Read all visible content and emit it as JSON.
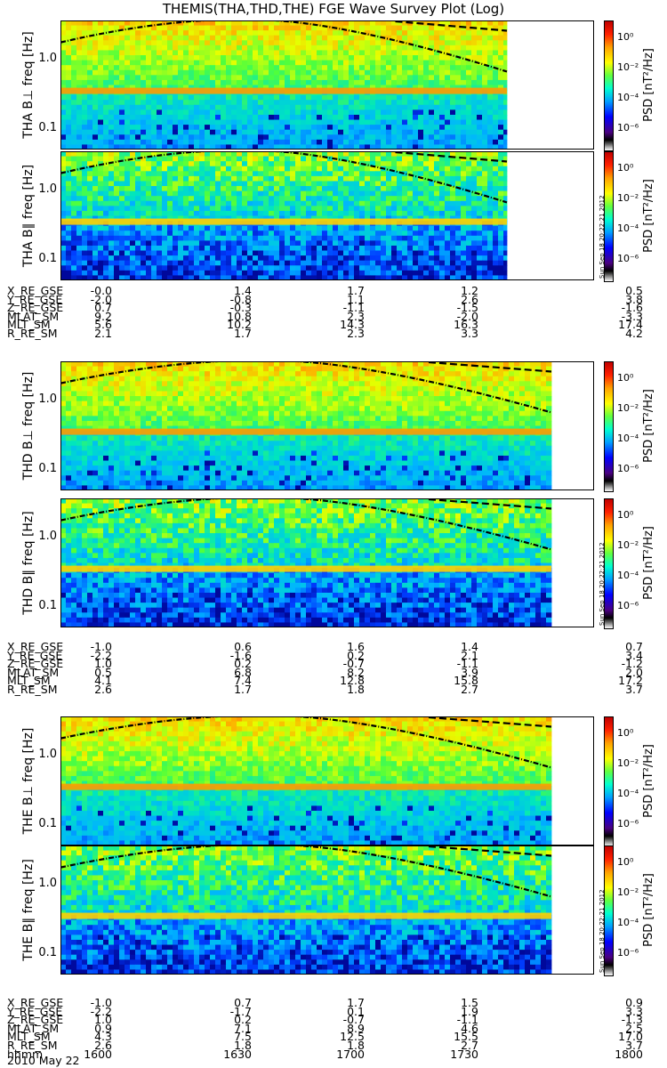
{
  "title": "THEMIS(THA,THD,THE) FGE Wave Survey Plot (Log)",
  "common": {
    "ylabel_unit": "freq [Hz]",
    "ytick_labels": [
      "1.0",
      "0.1"
    ],
    "cbar_label": "PSD [nT²/Hz]",
    "cbar_ticks": [
      "10⁰",
      "10⁻²",
      "10⁻⁴",
      "10⁻⁶"
    ],
    "stamp": "Sun Sep 18 20:22:21 2012"
  },
  "probes": [
    {
      "panels": [
        {
          "label": "THA B⊥"
        },
        {
          "label": "THA B∥"
        }
      ],
      "table": [
        {
          "name": "X_RE_GSE",
          "values": [
            "-0.0",
            "1.4",
            "1.7",
            "1.2",
            "0.5"
          ]
        },
        {
          "name": "Y_RE_GSE",
          "values": [
            "-2.0",
            "-0.8",
            "1.1",
            "2.6",
            "3.8"
          ]
        },
        {
          "name": "Z_RE_GSE",
          "values": [
            "0.7",
            "-0.3",
            "-1.1",
            "-1.5",
            "-1.6"
          ]
        },
        {
          "name": "MLAT_SM",
          "values": [
            "9.2",
            "10.8",
            "2.3",
            "-2.0",
            "-3.3"
          ]
        },
        {
          "name": "MLT_SM",
          "values": [
            "5.6",
            "10.2",
            "14.3",
            "16.3",
            "17.4"
          ]
        },
        {
          "name": "R_RE_SM",
          "values": [
            "2.1",
            "1.7",
            "2.3",
            "3.3",
            "4.2"
          ]
        }
      ]
    },
    {
      "panels": [
        {
          "label": "THD B⊥"
        },
        {
          "label": "THD B∥"
        }
      ],
      "table": [
        {
          "name": "X_RE_GSE",
          "values": [
            "-1.0",
            "0.6",
            "1.6",
            "1.4",
            "0.7"
          ]
        },
        {
          "name": "Y_RE_GSE",
          "values": [
            "-2.2",
            "-1.6",
            "0.2",
            "2.1",
            "3.4"
          ]
        },
        {
          "name": "Z_RE_GSE",
          "values": [
            "1.0",
            "0.2",
            "-0.7",
            "-1.1",
            "-1.2"
          ]
        },
        {
          "name": "MLAT_SM",
          "values": [
            "0.5",
            "6.8",
            "8.2",
            "3.9",
            "2.0"
          ]
        },
        {
          "name": "MLT_SM",
          "values": [
            "4.1",
            "7.4",
            "12.8",
            "15.8",
            "17.2"
          ]
        },
        {
          "name": "R_RE_SM",
          "values": [
            "2.6",
            "1.7",
            "1.8",
            "2.7",
            "3.7"
          ]
        }
      ]
    },
    {
      "panels": [
        {
          "label": "THE B⊥"
        },
        {
          "label": "THE B∥"
        }
      ],
      "table": [
        {
          "name": "X_RE_GSE",
          "values": [
            "-1.0",
            "0.7",
            "1.7",
            "1.5",
            "0.9"
          ]
        },
        {
          "name": "Y_RE_GSE",
          "values": [
            "-2.2",
            "-1.7",
            "0.1",
            "1.9",
            "3.3"
          ]
        },
        {
          "name": "Z_RE_GSE",
          "values": [
            "1.0",
            "0.2",
            "-0.7",
            "-1.1",
            "-1.3"
          ]
        },
        {
          "name": "MLAT_SM",
          "values": [
            "0.9",
            "7.1",
            "8.9",
            "4.6",
            "2.5"
          ]
        },
        {
          "name": "MLT_SM",
          "values": [
            "4.3",
            "7.5",
            "12.5",
            "15.5",
            "17.0"
          ]
        },
        {
          "name": "R_RE_SM",
          "values": [
            "2.6",
            "1.8",
            "1.8",
            "2.7",
            "3.7"
          ]
        },
        {
          "name": "hhmm",
          "values": [
            "1600",
            "1630",
            "1700",
            "1730",
            "1800"
          ]
        }
      ]
    }
  ],
  "date": "2010 May 22",
  "colors": {
    "background": "#ffffff",
    "band": "#ff9a00",
    "curve": "#000000"
  },
  "chart_data": {
    "type": "heatmap",
    "title": "THEMIS(THA,THD,THE) FGE Wave Survey Plot (Log)",
    "x_ticks": [
      "1600",
      "1630",
      "1700",
      "1730",
      "1800"
    ],
    "x_unit": "hhmm",
    "y_scale": "log",
    "y_ticks": [
      1.0,
      0.1
    ],
    "ylim": [
      0.05,
      3.5
    ],
    "colorbar": {
      "label": "PSD [nT²/Hz]",
      "scale": "log",
      "range": [
        1e-06,
        10.0
      ]
    },
    "data_end": {
      "THA": "1729",
      "THD": "1749",
      "THE": "1749"
    },
    "series": [
      {
        "name": "THA B⊥"
      },
      {
        "name": "THA B∥"
      },
      {
        "name": "THD B⊥"
      },
      {
        "name": "THD B∥"
      },
      {
        "name": "THE B⊥"
      },
      {
        "name": "THE B∥"
      }
    ]
  }
}
